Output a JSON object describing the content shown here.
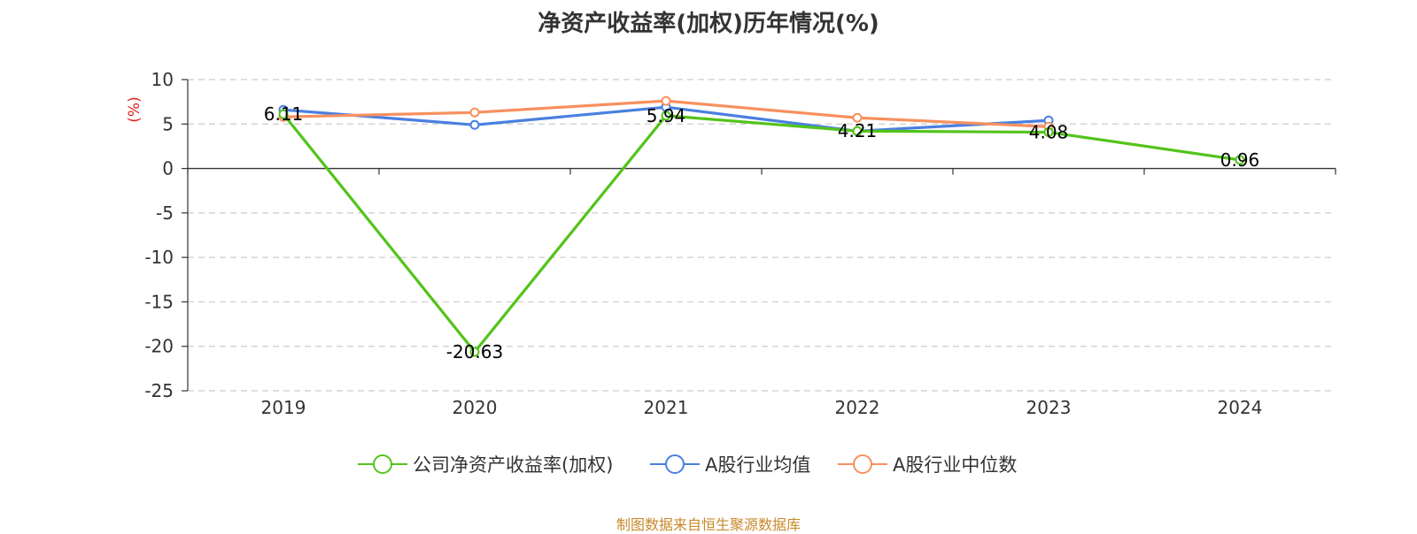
{
  "chart_data": {
    "type": "line",
    "title": "净资产收益率(加权)历年情况(%)",
    "ylabel": "(%)",
    "xlabel": "",
    "categories": [
      "2019",
      "2020",
      "2021",
      "2022",
      "2023",
      "2024"
    ],
    "ylim": [
      -25,
      10
    ],
    "yticks": [
      10,
      5,
      0,
      -5,
      -10,
      -15,
      -20,
      -25
    ],
    "grid": true,
    "legend_position": "bottom",
    "series": [
      {
        "name": "公司净资产收益率(加权)",
        "color": "#52c41a",
        "values": [
          6.11,
          -20.63,
          5.94,
          4.21,
          4.08,
          0.96
        ],
        "labels": [
          "6.11",
          "-20.63",
          "5.94",
          "4.21",
          "4.08",
          "0.96"
        ]
      },
      {
        "name": "A股行业均值",
        "color": "#4a7fe0",
        "values": [
          6.6,
          4.9,
          6.9,
          4.2,
          5.4,
          null
        ]
      },
      {
        "name": "A股行业中位数",
        "color": "#f7905e",
        "values": [
          5.8,
          6.3,
          7.6,
          5.7,
          4.7,
          null
        ]
      }
    ]
  },
  "source_text": "制图数据来自恒生聚源数据库"
}
